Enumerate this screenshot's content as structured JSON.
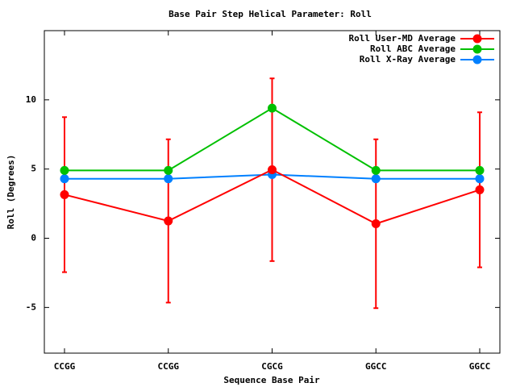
{
  "chart_data": {
    "type": "line",
    "title": "Base Pair Step Helical Parameter: Roll",
    "x_label": "Sequence Base Pair",
    "y_label": "Roll (Degrees)",
    "categories": [
      "CCGG",
      "CCGG",
      "CGCG",
      "GGCC",
      "GGCC"
    ],
    "series": [
      {
        "name": "Roll User-MD Average",
        "color": "#ff0000",
        "values": [
          3.15,
          1.25,
          4.95,
          1.05,
          3.5
        ],
        "errors": [
          5.6,
          5.9,
          6.6,
          6.1,
          5.6
        ]
      },
      {
        "name": "Roll ABC Average",
        "color": "#00c000",
        "values": [
          4.9,
          4.9,
          9.4,
          4.9,
          4.9
        ]
      },
      {
        "name": "Roll X-Ray Average",
        "color": "#0080ff",
        "values": [
          4.3,
          4.3,
          4.6,
          4.3,
          4.3
        ]
      }
    ],
    "ylim": [
      -8.3,
      15
    ],
    "yticks": [
      -5,
      0,
      5,
      10
    ],
    "legend": "top-right"
  }
}
